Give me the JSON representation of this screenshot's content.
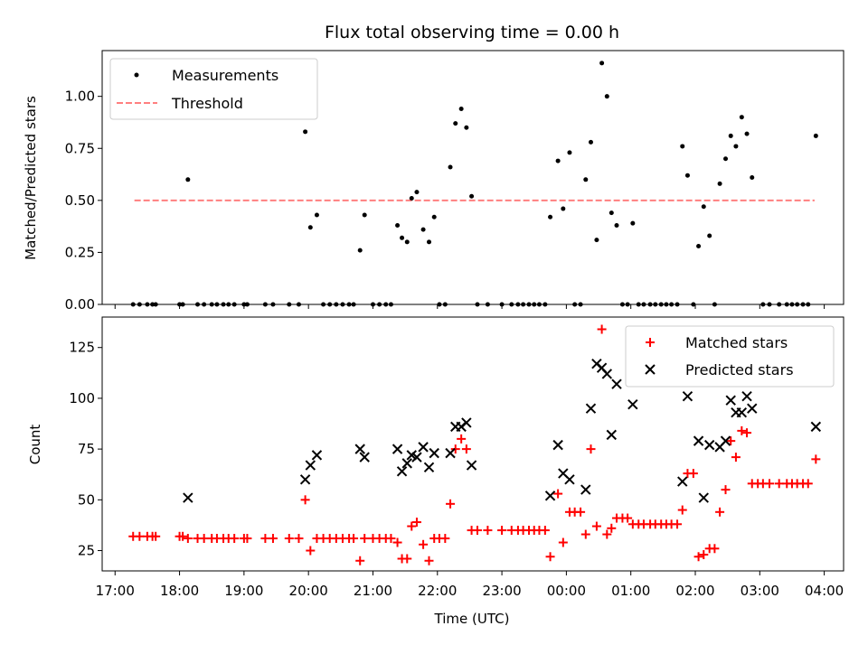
{
  "chart_data": [
    {
      "type": "scatter",
      "title": "Flux total observing time = 0.00 h",
      "ylabel": "Matched/Predicted stars",
      "xlabel": "",
      "ylim": [
        0,
        1.22
      ],
      "yticks": [
        "0.00",
        "0.25",
        "0.50",
        "0.75",
        "1.00"
      ],
      "yticks_values": [
        0,
        0.25,
        0.5,
        0.75,
        1.0
      ],
      "legend_position": "top-left",
      "series": [
        {
          "name": "Measurements",
          "kind": "scatter",
          "color": "#000000",
          "points": [
            [
              17.28,
              0
            ],
            [
              17.38,
              0
            ],
            [
              17.5,
              0
            ],
            [
              17.58,
              0
            ],
            [
              17.63,
              0
            ],
            [
              18.0,
              0
            ],
            [
              18.05,
              0
            ],
            [
              18.13,
              0.6
            ],
            [
              18.28,
              0
            ],
            [
              18.38,
              0
            ],
            [
              18.5,
              0
            ],
            [
              18.58,
              0
            ],
            [
              18.68,
              0
            ],
            [
              18.76,
              0
            ],
            [
              18.85,
              0
            ],
            [
              19.0,
              0
            ],
            [
              19.05,
              0
            ],
            [
              19.33,
              0
            ],
            [
              19.45,
              0
            ],
            [
              19.7,
              0
            ],
            [
              19.85,
              0
            ],
            [
              19.95,
              0.83
            ],
            [
              20.03,
              0.37
            ],
            [
              20.13,
              0.43
            ],
            [
              20.23,
              0
            ],
            [
              20.33,
              0
            ],
            [
              20.43,
              0
            ],
            [
              20.53,
              0
            ],
            [
              20.63,
              0
            ],
            [
              20.7,
              0
            ],
            [
              20.8,
              0.26
            ],
            [
              20.87,
              0.43
            ],
            [
              21.0,
              0
            ],
            [
              21.1,
              0
            ],
            [
              21.2,
              0
            ],
            [
              21.28,
              0
            ],
            [
              21.38,
              0.38
            ],
            [
              21.45,
              0.32
            ],
            [
              21.53,
              0.3
            ],
            [
              21.6,
              0.51
            ],
            [
              21.68,
              0.54
            ],
            [
              21.78,
              0.36
            ],
            [
              21.87,
              0.3
            ],
            [
              21.95,
              0.42
            ],
            [
              22.03,
              0
            ],
            [
              22.12,
              0
            ],
            [
              22.2,
              0.66
            ],
            [
              22.28,
              0.87
            ],
            [
              22.37,
              0.94
            ],
            [
              22.45,
              0.85
            ],
            [
              22.53,
              0.52
            ],
            [
              22.62,
              0
            ],
            [
              22.78,
              0
            ],
            [
              23.0,
              0
            ],
            [
              23.15,
              0
            ],
            [
              23.25,
              0
            ],
            [
              23.33,
              0
            ],
            [
              23.42,
              0
            ],
            [
              23.5,
              0
            ],
            [
              23.58,
              0
            ],
            [
              23.67,
              0
            ],
            [
              23.75,
              0.42
            ],
            [
              23.87,
              0.69
            ],
            [
              23.95,
              0.46
            ],
            [
              24.05,
              0.73
            ],
            [
              24.13,
              0
            ],
            [
              24.22,
              0
            ],
            [
              24.3,
              0.6
            ],
            [
              24.38,
              0.78
            ],
            [
              24.47,
              0.31
            ],
            [
              24.55,
              1.16
            ],
            [
              24.63,
              1.0
            ],
            [
              24.7,
              0.44
            ],
            [
              24.78,
              0.38
            ],
            [
              24.87,
              0
            ],
            [
              24.95,
              0
            ],
            [
              25.03,
              0.39
            ],
            [
              25.12,
              0
            ],
            [
              25.2,
              0
            ],
            [
              25.3,
              0
            ],
            [
              25.38,
              0
            ],
            [
              25.47,
              0
            ],
            [
              25.55,
              0
            ],
            [
              25.63,
              0
            ],
            [
              25.72,
              0
            ],
            [
              25.8,
              0.76
            ],
            [
              25.88,
              0.62
            ],
            [
              25.97,
              0
            ],
            [
              26.05,
              0.28
            ],
            [
              26.13,
              0.47
            ],
            [
              26.22,
              0.33
            ],
            [
              26.3,
              0
            ],
            [
              26.38,
              0.58
            ],
            [
              26.47,
              0.7
            ],
            [
              26.55,
              0.81
            ],
            [
              26.63,
              0.76
            ],
            [
              26.72,
              0.9
            ],
            [
              26.8,
              0.82
            ],
            [
              26.88,
              0.61
            ],
            [
              27.05,
              0
            ],
            [
              27.15,
              0
            ],
            [
              27.3,
              0
            ],
            [
              27.42,
              0
            ],
            [
              27.5,
              0
            ],
            [
              27.58,
              0
            ],
            [
              27.67,
              0
            ],
            [
              27.75,
              0
            ],
            [
              27.87,
              0.81
            ]
          ]
        },
        {
          "name": "Threshold",
          "kind": "dashed-line",
          "color": "#ff7f7f",
          "points": [
            [
              17.3,
              0.5
            ],
            [
              27.85,
              0.5
            ]
          ]
        }
      ]
    },
    {
      "type": "scatter",
      "title": "",
      "ylabel": "Count",
      "xlabel": "Time (UTC)",
      "ylim": [
        15,
        140
      ],
      "yticks": [
        "25",
        "50",
        "75",
        "100",
        "125"
      ],
      "yticks_values": [
        25,
        50,
        75,
        100,
        125
      ],
      "xlim": [
        16.8,
        28.3
      ],
      "xticks": [
        "17:00",
        "18:00",
        "19:00",
        "20:00",
        "21:00",
        "22:00",
        "23:00",
        "00:00",
        "01:00",
        "02:00",
        "03:00",
        "04:00"
      ],
      "xticks_values": [
        17,
        18,
        19,
        20,
        21,
        22,
        23,
        24,
        25,
        26,
        27,
        28
      ],
      "legend_position": "top-right",
      "series": [
        {
          "name": "Matched stars",
          "kind": "plus",
          "color": "#ff0000",
          "points": [
            [
              17.28,
              32
            ],
            [
              17.38,
              32
            ],
            [
              17.5,
              32
            ],
            [
              17.58,
              32
            ],
            [
              17.63,
              32
            ],
            [
              18.0,
              32
            ],
            [
              18.05,
              32
            ],
            [
              18.13,
              31
            ],
            [
              18.28,
              31
            ],
            [
              18.38,
              31
            ],
            [
              18.5,
              31
            ],
            [
              18.58,
              31
            ],
            [
              18.68,
              31
            ],
            [
              18.76,
              31
            ],
            [
              18.85,
              31
            ],
            [
              19.0,
              31
            ],
            [
              19.05,
              31
            ],
            [
              19.33,
              31
            ],
            [
              19.45,
              31
            ],
            [
              19.7,
              31
            ],
            [
              19.85,
              31
            ],
            [
              19.95,
              50
            ],
            [
              20.03,
              25
            ],
            [
              20.13,
              31
            ],
            [
              20.23,
              31
            ],
            [
              20.33,
              31
            ],
            [
              20.43,
              31
            ],
            [
              20.53,
              31
            ],
            [
              20.63,
              31
            ],
            [
              20.7,
              31
            ],
            [
              20.8,
              20
            ],
            [
              20.87,
              31
            ],
            [
              21.0,
              31
            ],
            [
              21.1,
              31
            ],
            [
              21.2,
              31
            ],
            [
              21.28,
              31
            ],
            [
              21.38,
              29
            ],
            [
              21.45,
              21
            ],
            [
              21.53,
              21
            ],
            [
              21.6,
              37
            ],
            [
              21.68,
              39
            ],
            [
              21.78,
              28
            ],
            [
              21.87,
              20
            ],
            [
              21.95,
              31
            ],
            [
              22.03,
              31
            ],
            [
              22.12,
              31
            ],
            [
              22.2,
              48
            ],
            [
              22.28,
              75
            ],
            [
              22.37,
              80
            ],
            [
              22.45,
              75
            ],
            [
              22.53,
              35
            ],
            [
              22.62,
              35
            ],
            [
              22.78,
              35
            ],
            [
              23.0,
              35
            ],
            [
              23.15,
              35
            ],
            [
              23.25,
              35
            ],
            [
              23.33,
              35
            ],
            [
              23.42,
              35
            ],
            [
              23.5,
              35
            ],
            [
              23.58,
              35
            ],
            [
              23.67,
              35
            ],
            [
              23.75,
              22
            ],
            [
              23.87,
              53
            ],
            [
              23.95,
              29
            ],
            [
              24.05,
              44
            ],
            [
              24.13,
              44
            ],
            [
              24.22,
              44
            ],
            [
              24.3,
              33
            ],
            [
              24.38,
              75
            ],
            [
              24.47,
              37
            ],
            [
              24.55,
              134
            ],
            [
              24.63,
              33
            ],
            [
              24.7,
              36
            ],
            [
              24.78,
              41
            ],
            [
              24.87,
              41
            ],
            [
              24.95,
              41
            ],
            [
              25.03,
              38
            ],
            [
              25.12,
              38
            ],
            [
              25.2,
              38
            ],
            [
              25.3,
              38
            ],
            [
              25.38,
              38
            ],
            [
              25.47,
              38
            ],
            [
              25.55,
              38
            ],
            [
              25.63,
              38
            ],
            [
              25.72,
              38
            ],
            [
              25.8,
              45
            ],
            [
              25.88,
              63
            ],
            [
              25.97,
              63
            ],
            [
              26.05,
              22
            ],
            [
              26.13,
              23
            ],
            [
              26.22,
              26
            ],
            [
              26.3,
              26
            ],
            [
              26.38,
              44
            ],
            [
              26.47,
              55
            ],
            [
              26.55,
              79
            ],
            [
              26.63,
              71
            ],
            [
              26.72,
              84
            ],
            [
              26.8,
              83
            ],
            [
              26.88,
              58
            ],
            [
              26.97,
              58
            ],
            [
              27.05,
              58
            ],
            [
              27.15,
              58
            ],
            [
              27.3,
              58
            ],
            [
              27.42,
              58
            ],
            [
              27.5,
              58
            ],
            [
              27.58,
              58
            ],
            [
              27.67,
              58
            ],
            [
              27.75,
              58
            ],
            [
              27.87,
              70
            ]
          ]
        },
        {
          "name": "Predicted stars",
          "kind": "x",
          "color": "#000000",
          "points": [
            [
              18.13,
              51
            ],
            [
              19.95,
              60
            ],
            [
              20.03,
              67
            ],
            [
              20.13,
              72
            ],
            [
              20.8,
              75
            ],
            [
              20.87,
              71
            ],
            [
              21.38,
              75
            ],
            [
              21.45,
              64
            ],
            [
              21.53,
              68
            ],
            [
              21.6,
              72
            ],
            [
              21.68,
              71
            ],
            [
              21.78,
              76
            ],
            [
              21.87,
              66
            ],
            [
              21.95,
              73
            ],
            [
              22.2,
              73
            ],
            [
              22.28,
              86
            ],
            [
              22.37,
              86
            ],
            [
              22.45,
              88
            ],
            [
              22.53,
              67
            ],
            [
              23.75,
              52
            ],
            [
              23.87,
              77
            ],
            [
              23.95,
              63
            ],
            [
              24.05,
              60
            ],
            [
              24.3,
              55
            ],
            [
              24.38,
              95
            ],
            [
              24.47,
              117
            ],
            [
              24.55,
              115
            ],
            [
              24.63,
              112
            ],
            [
              24.7,
              82
            ],
            [
              24.78,
              107
            ],
            [
              25.03,
              97
            ],
            [
              25.8,
              59
            ],
            [
              25.88,
              101
            ],
            [
              26.05,
              79
            ],
            [
              26.13,
              51
            ],
            [
              26.22,
              77
            ],
            [
              26.38,
              76
            ],
            [
              26.47,
              79
            ],
            [
              26.55,
              99
            ],
            [
              26.63,
              93
            ],
            [
              26.72,
              93
            ],
            [
              26.8,
              101
            ],
            [
              26.88,
              95
            ],
            [
              27.87,
              86
            ]
          ]
        }
      ]
    }
  ]
}
